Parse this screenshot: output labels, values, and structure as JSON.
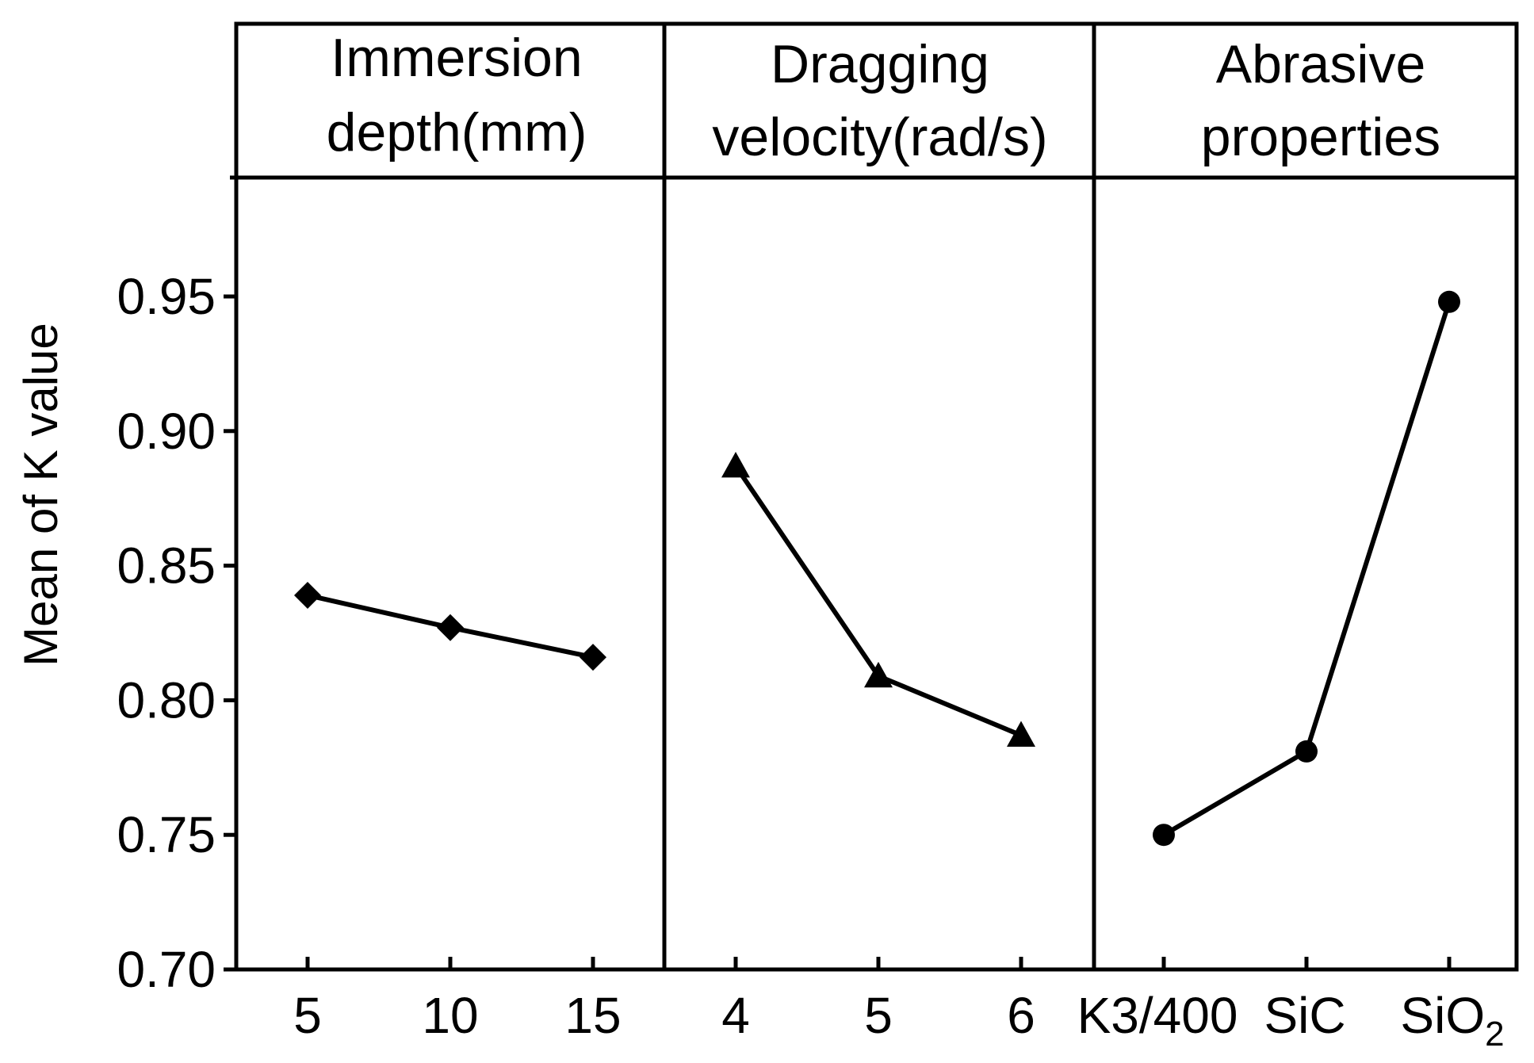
{
  "chart_data": {
    "type": "line",
    "ylabel": "Mean of K value",
    "ylim": [
      0.7,
      1.0
    ],
    "yticks": [
      {
        "value": 0.7,
        "label": "0.70"
      },
      {
        "value": 0.75,
        "label": "0.75"
      },
      {
        "value": 0.8,
        "label": "0.80"
      },
      {
        "value": 0.85,
        "label": "0.85"
      },
      {
        "value": 0.9,
        "label": "0.90"
      },
      {
        "value": 0.95,
        "label": "0.95"
      }
    ],
    "grid": false,
    "panels": [
      {
        "title_lines": [
          "Immersion",
          "depth(mm)"
        ],
        "categories": [
          "5",
          "10",
          "15"
        ],
        "values": [
          0.839,
          0.827,
          0.816
        ],
        "marker": "diamond"
      },
      {
        "title_lines": [
          "Dragging",
          "velocity(rad/s)"
        ],
        "categories": [
          "4",
          "5",
          "6"
        ],
        "values": [
          0.887,
          0.809,
          0.787
        ],
        "marker": "triangle"
      },
      {
        "title_lines": [
          "Abrasive",
          "properties"
        ],
        "categories": [
          "K3/400",
          "SiC",
          "SiO2"
        ],
        "category_subscripts": [
          "",
          "",
          "2"
        ],
        "category_bases": [
          "K3/400",
          "SiC",
          "SiO"
        ],
        "values": [
          0.75,
          0.781,
          0.948
        ],
        "marker": "circle"
      }
    ],
    "colors": {
      "line": "#000000",
      "background": "#ffffff"
    }
  }
}
